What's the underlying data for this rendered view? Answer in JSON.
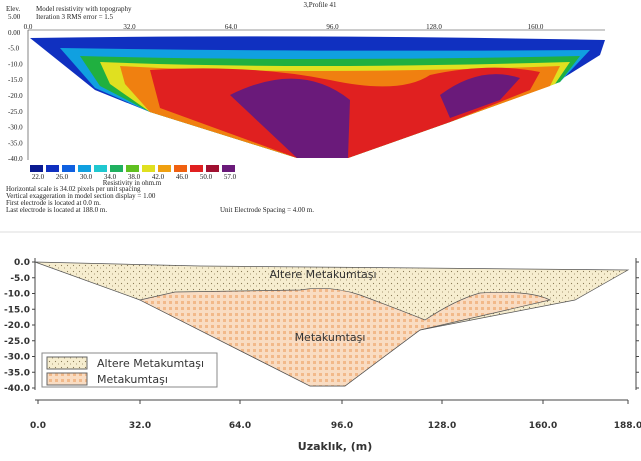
{
  "top": {
    "title": "3,Profile 41",
    "elev_label": "Elev.",
    "subtitle": "Model resistivity with topography",
    "iteration": "Iteration 3 RMS error = 1.5",
    "xticks": [
      "0.0",
      "32.0",
      "64.0",
      "96.0",
      "128.0",
      "160.0"
    ],
    "yticks": [
      "5.00",
      "0.00",
      "-5.0",
      "-10.0",
      "-15.0",
      "-20.0",
      "-25.0",
      "-30.0",
      "-35.0",
      "-40.0"
    ],
    "colorbar_labels": [
      "22.0",
      "26.0",
      "30.0",
      "34.0",
      "38.0",
      "42.0",
      "46.0",
      "50.0",
      "57.0"
    ],
    "colorbar_title": "Resistivity in ohm.m",
    "notes": [
      "Horizontal scale is 34.02 pixels per unit spacing",
      "Vertical exaggeration in model section display = 1.00",
      "First electrode is located at 0.0 m.",
      "Last electrode is located at 188.0 m."
    ],
    "spacing_note": "Unit Electrode Spacing = 4.00 m."
  },
  "bottom": {
    "yticks": [
      "0.0",
      "-5.0",
      "-10.0",
      "-15.0",
      "-20.0",
      "-25.0",
      "-30.0",
      "-35.0",
      "-40.0"
    ],
    "xticks": [
      "0.0",
      "32.0",
      "64.0",
      "96.0",
      "128.0",
      "160.0",
      "188.0"
    ],
    "xlabel": "Uzaklık, (m)",
    "upper_unit": "Altere Metakumtaşı",
    "lower_unit": "Metakumtaşı",
    "legend": [
      "Altere Metakumtaşı",
      "Metakumtaşı"
    ]
  }
}
